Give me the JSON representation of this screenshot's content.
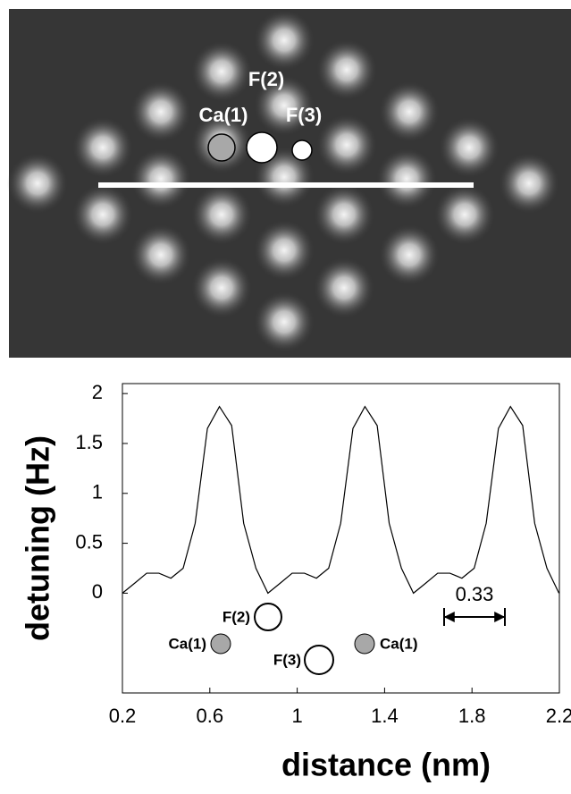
{
  "image": {
    "labels": [
      "Ca(1)",
      "F(2)",
      "F(3)"
    ]
  },
  "chart_data": {
    "type": "line",
    "xlabel": "distance (nm)",
    "ylabel": "detuning (Hz)",
    "x": [
      0.2,
      0.256,
      0.311,
      0.367,
      0.422,
      0.478,
      0.533,
      0.589,
      0.644,
      0.7,
      0.755,
      0.811,
      0.866,
      0.922,
      0.977,
      1.033,
      1.088,
      1.144,
      1.199,
      1.255,
      1.31,
      1.366,
      1.421,
      1.477,
      1.532,
      1.588,
      1.643,
      1.699,
      1.754,
      1.81,
      1.865,
      1.921,
      1.976,
      2.032,
      2.087,
      2.143,
      2.198
    ],
    "values": [
      0,
      0.1,
      0.2,
      0.2,
      0.15,
      0.25,
      0.7,
      1.65,
      1.87,
      1.68,
      0.7,
      0.25,
      0,
      0.1,
      0.2,
      0.2,
      0.15,
      0.25,
      0.7,
      1.65,
      1.87,
      1.68,
      0.7,
      0.25,
      0,
      0.1,
      0.2,
      0.2,
      0.15,
      0.25,
      0.7,
      1.65,
      1.87,
      1.68,
      0.7,
      0.25,
      0
    ],
    "color": "#000000",
    "xlim": [
      0.2,
      2.2
    ],
    "xticks": [
      0.2,
      0.6,
      1,
      1.4,
      1.8,
      2.2
    ],
    "ylim": [
      -1,
      2.1
    ],
    "yticks": [
      0,
      0.5,
      1,
      1.5,
      2
    ],
    "annotations": [
      "F(2)",
      "Ca(1)",
      "F(3)",
      "Ca(1)",
      "0.33"
    ]
  }
}
